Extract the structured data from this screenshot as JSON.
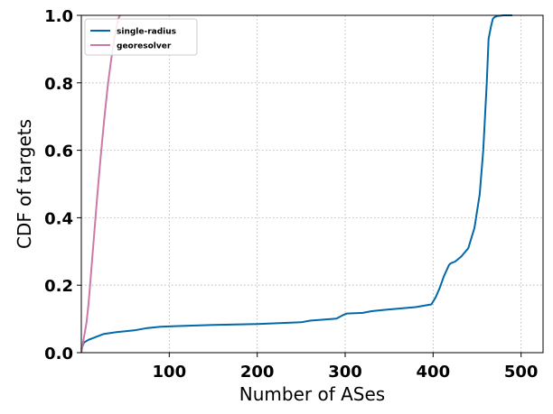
{
  "chart_data": {
    "type": "line",
    "title": "",
    "xlabel": "Number of ASes",
    "ylabel": "CDF of targets",
    "xlim": [
      0,
      525
    ],
    "ylim": [
      0,
      1
    ],
    "xticks": [
      100,
      200,
      300,
      400,
      500
    ],
    "yticks": [
      0.0,
      0.2,
      0.4,
      0.6,
      0.8,
      1.0
    ],
    "ytick_labels": [
      "0.0",
      "0.2",
      "0.4",
      "0.6",
      "0.8",
      "1.0"
    ],
    "grid": true,
    "legend_position": "top-left",
    "series": [
      {
        "name": "single-radius",
        "color": "#0068ab",
        "x": [
          0,
          3,
          8,
          15,
          25,
          40,
          60,
          75,
          90,
          110,
          150,
          200,
          250,
          260,
          290,
          298,
          302,
          320,
          330,
          345,
          380,
          398,
          403,
          408,
          412,
          418,
          420,
          425,
          432,
          440,
          447,
          453,
          457,
          461,
          463,
          466,
          468,
          470,
          473,
          480,
          490
        ],
        "y": [
          0.01,
          0.03,
          0.038,
          0.045,
          0.055,
          0.061,
          0.066,
          0.073,
          0.077,
          0.079,
          0.082,
          0.085,
          0.09,
          0.095,
          0.101,
          0.112,
          0.116,
          0.118,
          0.123,
          0.127,
          0.135,
          0.143,
          0.165,
          0.195,
          0.225,
          0.26,
          0.265,
          0.27,
          0.285,
          0.31,
          0.37,
          0.47,
          0.6,
          0.8,
          0.93,
          0.97,
          0.99,
          0.995,
          0.998,
          1.0,
          1.0
        ]
      },
      {
        "name": "georesolver",
        "color": "#cc79a7",
        "x": [
          0,
          2,
          4,
          6,
          8,
          10,
          14,
          18,
          22,
          26,
          30,
          34,
          38,
          42,
          44
        ],
        "y": [
          0.0,
          0.03,
          0.06,
          0.09,
          0.14,
          0.2,
          0.33,
          0.46,
          0.58,
          0.69,
          0.79,
          0.87,
          0.94,
          0.99,
          1.0
        ]
      }
    ]
  }
}
